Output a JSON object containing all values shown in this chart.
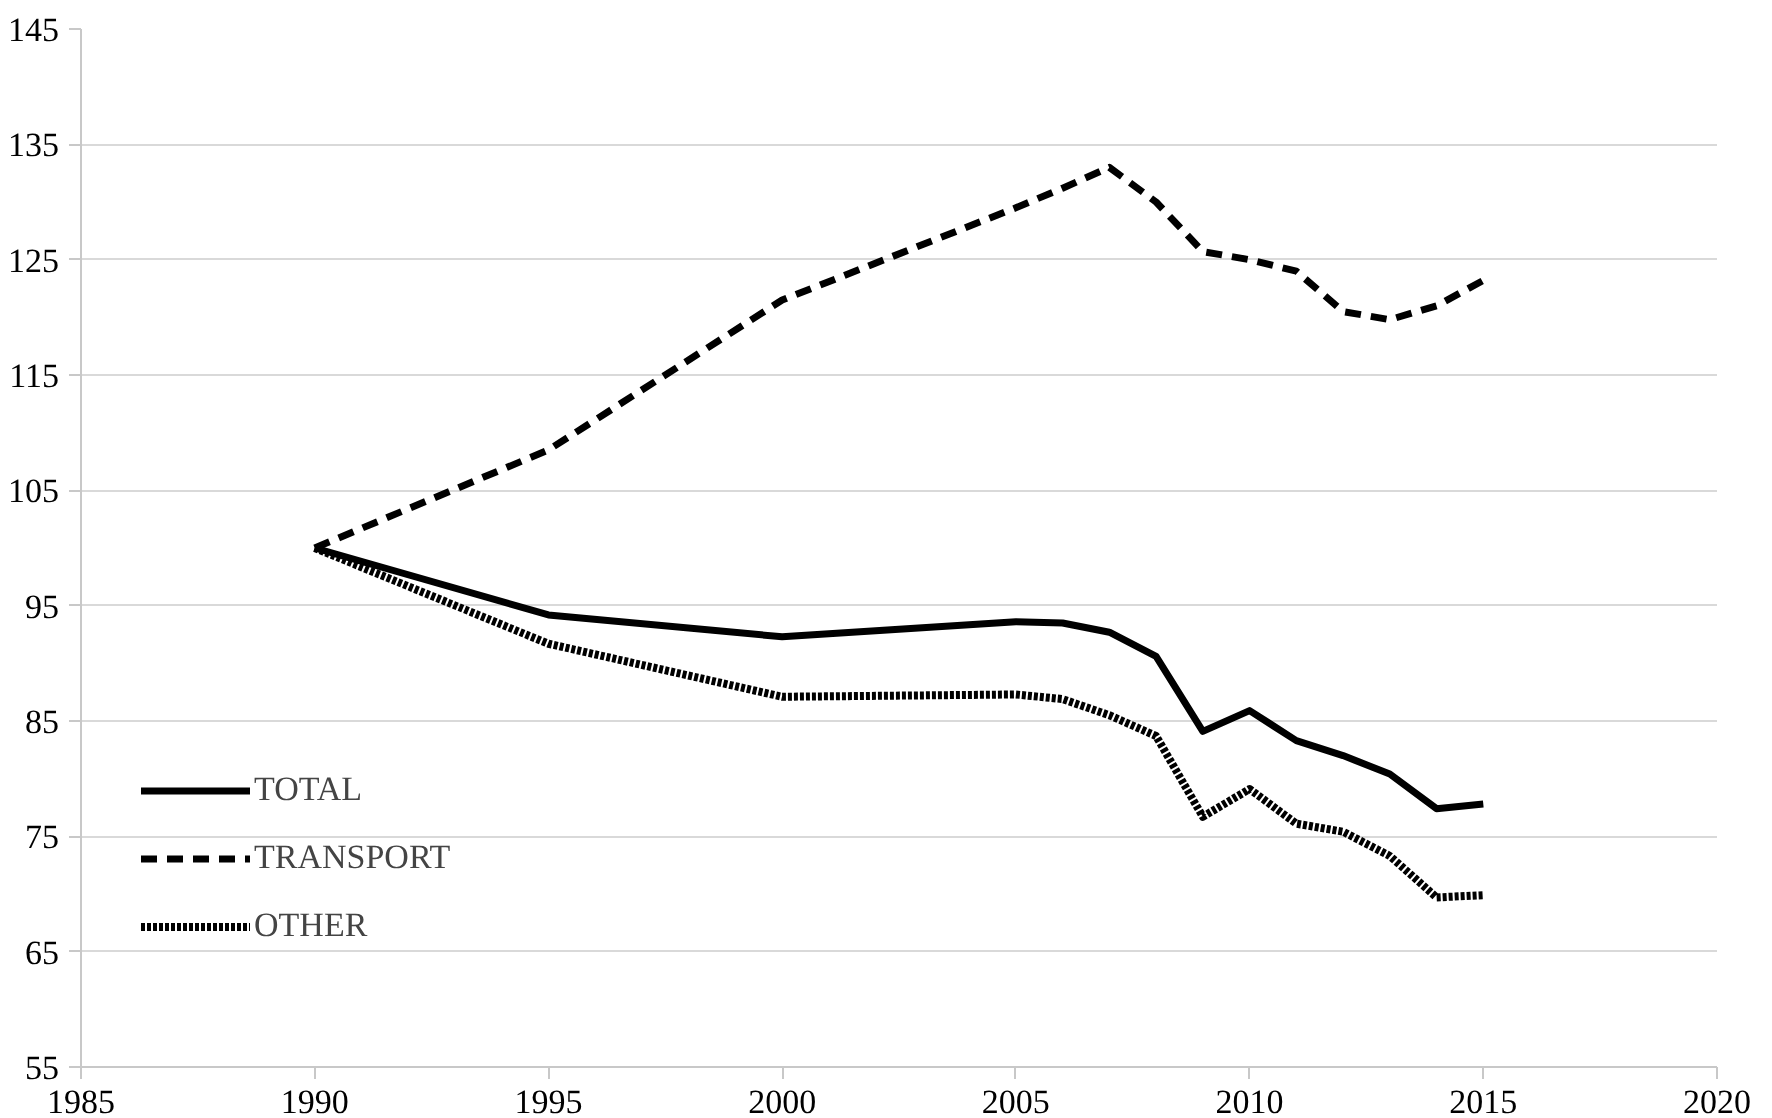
{
  "chart_data": {
    "type": "line",
    "x": [
      1990,
      1995,
      2000,
      2005,
      2006,
      2007,
      2008,
      2009,
      2010,
      2011,
      2012,
      2013,
      2014,
      2015
    ],
    "series": [
      {
        "name": "TOTAL",
        "color": "#000000",
        "line_style": "solid",
        "values": [
          100,
          94.2,
          92.3,
          93.6,
          93.5,
          92.7,
          90.6,
          84.1,
          85.9,
          83.3,
          82,
          80.4,
          77.4,
          77.8
        ]
      },
      {
        "name": "TRANSPORT",
        "color": "#000000",
        "line_style": "dashed",
        "values": [
          100,
          108.5,
          121.5,
          129.5,
          131.2,
          133,
          130,
          125.7,
          125,
          124,
          120.5,
          119.8,
          121,
          123.2
        ]
      },
      {
        "name": "OTHER",
        "color": "#000000",
        "line_style": "dotted",
        "values": [
          100,
          91.7,
          87.1,
          87.3,
          86.9,
          85.5,
          83.7,
          76.7,
          79.1,
          76.1,
          75.4,
          73.3,
          69.7,
          69.9
        ]
      }
    ],
    "xlim": [
      1985,
      2020
    ],
    "xticks": [
      1985,
      1990,
      1995,
      2000,
      2005,
      2010,
      2015,
      2020
    ],
    "ylim": [
      55,
      145
    ],
    "yticks": [
      55,
      65,
      75,
      85,
      95,
      105,
      115,
      125,
      135,
      145
    ],
    "grid": "y",
    "legend": "bottom left"
  }
}
